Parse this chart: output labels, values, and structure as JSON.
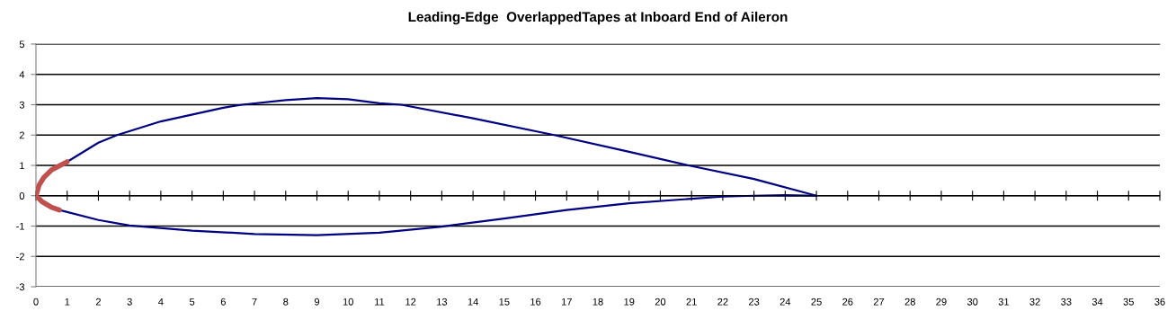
{
  "chart_data": {
    "type": "line",
    "title": "Leading-Edge  OverlappedTapes at Inboard End of Aileron",
    "series": [
      {
        "color": "#000080",
        "x": [
          1,
          2,
          2.6,
          4,
          6,
          6.6,
          8,
          9,
          10,
          11,
          11.7,
          14,
          16.6,
          19,
          20.9,
          23,
          25
        ],
        "values": [
          1.12,
          1.75,
          2,
          2.45,
          2.9,
          3,
          3.15,
          3.22,
          3.18,
          3.05,
          3,
          2.55,
          2,
          1.45,
          1,
          0.55,
          0
        ]
      },
      {
        "color": "#000080",
        "x": [
          0.75,
          2,
          3,
          5,
          7,
          9,
          11,
          13,
          15,
          17,
          19,
          21,
          22,
          23,
          24,
          25
        ],
        "values": [
          -0.47,
          -0.8,
          -0.98,
          -1.15,
          -1.26,
          -1.3,
          -1.22,
          -1.02,
          -0.75,
          -0.47,
          -0.25,
          -0.1,
          -0.03,
          0,
          0.02,
          0
        ]
      },
      {
        "color": "#c0504d",
        "x": [
          0,
          0.1,
          0.25,
          0.5,
          1
        ],
        "values": [
          0,
          0.35,
          0.6,
          0.85,
          1.12
        ]
      },
      {
        "color": "#c0504d",
        "x": [
          0,
          0.2,
          0.5,
          0.75
        ],
        "values": [
          0,
          -0.2,
          -0.38,
          -0.47
        ]
      }
    ],
    "xlim": [
      0,
      36
    ],
    "xticks": [
      0,
      1,
      2,
      3,
      4,
      5,
      6,
      7,
      8,
      9,
      10,
      11,
      12,
      13,
      14,
      15,
      16,
      17,
      18,
      19,
      20,
      21,
      22,
      23,
      24,
      25,
      26,
      27,
      28,
      29,
      30,
      31,
      32,
      33,
      34,
      35,
      36
    ],
    "ylim": [
      -3,
      5
    ],
    "yticks": [
      -3,
      -2,
      -1,
      0,
      1,
      2,
      3,
      4,
      5
    ],
    "grid": "y",
    "marker": "none",
    "line_style": "solid"
  }
}
